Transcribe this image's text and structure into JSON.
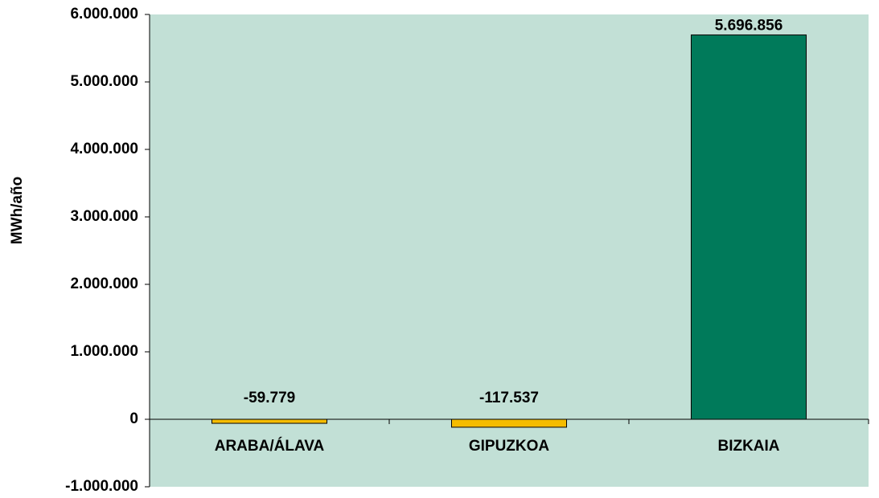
{
  "chart_data": {
    "type": "bar",
    "y_label": "MWh/año",
    "categories": [
      "ARABA/ÁLAVA",
      "GIPUZKOA",
      "BIZKAIA"
    ],
    "values": [
      -59779,
      -117537,
      5696856
    ],
    "value_labels": [
      "-59.779",
      "-117.537",
      "5.696.856"
    ],
    "colors": [
      "#f5bc00",
      "#f5bc00",
      "#007a5a"
    ],
    "background": "#c2e0d6",
    "ylim": [
      -1000000,
      6000000
    ],
    "yticks": [
      {
        "value": -1000000,
        "label": "-1.000.000"
      },
      0,
      {
        "value": 1000000,
        "label": "1.000.000"
      },
      {
        "value": 2000000,
        "label": "2.000.000"
      },
      {
        "value": 3000000,
        "label": "3.000.000"
      },
      {
        "value": 4000000,
        "label": "4.000.000"
      },
      {
        "value": 5000000,
        "label": "5.000.000"
      },
      {
        "value": 6000000,
        "label": "6.000.000"
      }
    ]
  }
}
